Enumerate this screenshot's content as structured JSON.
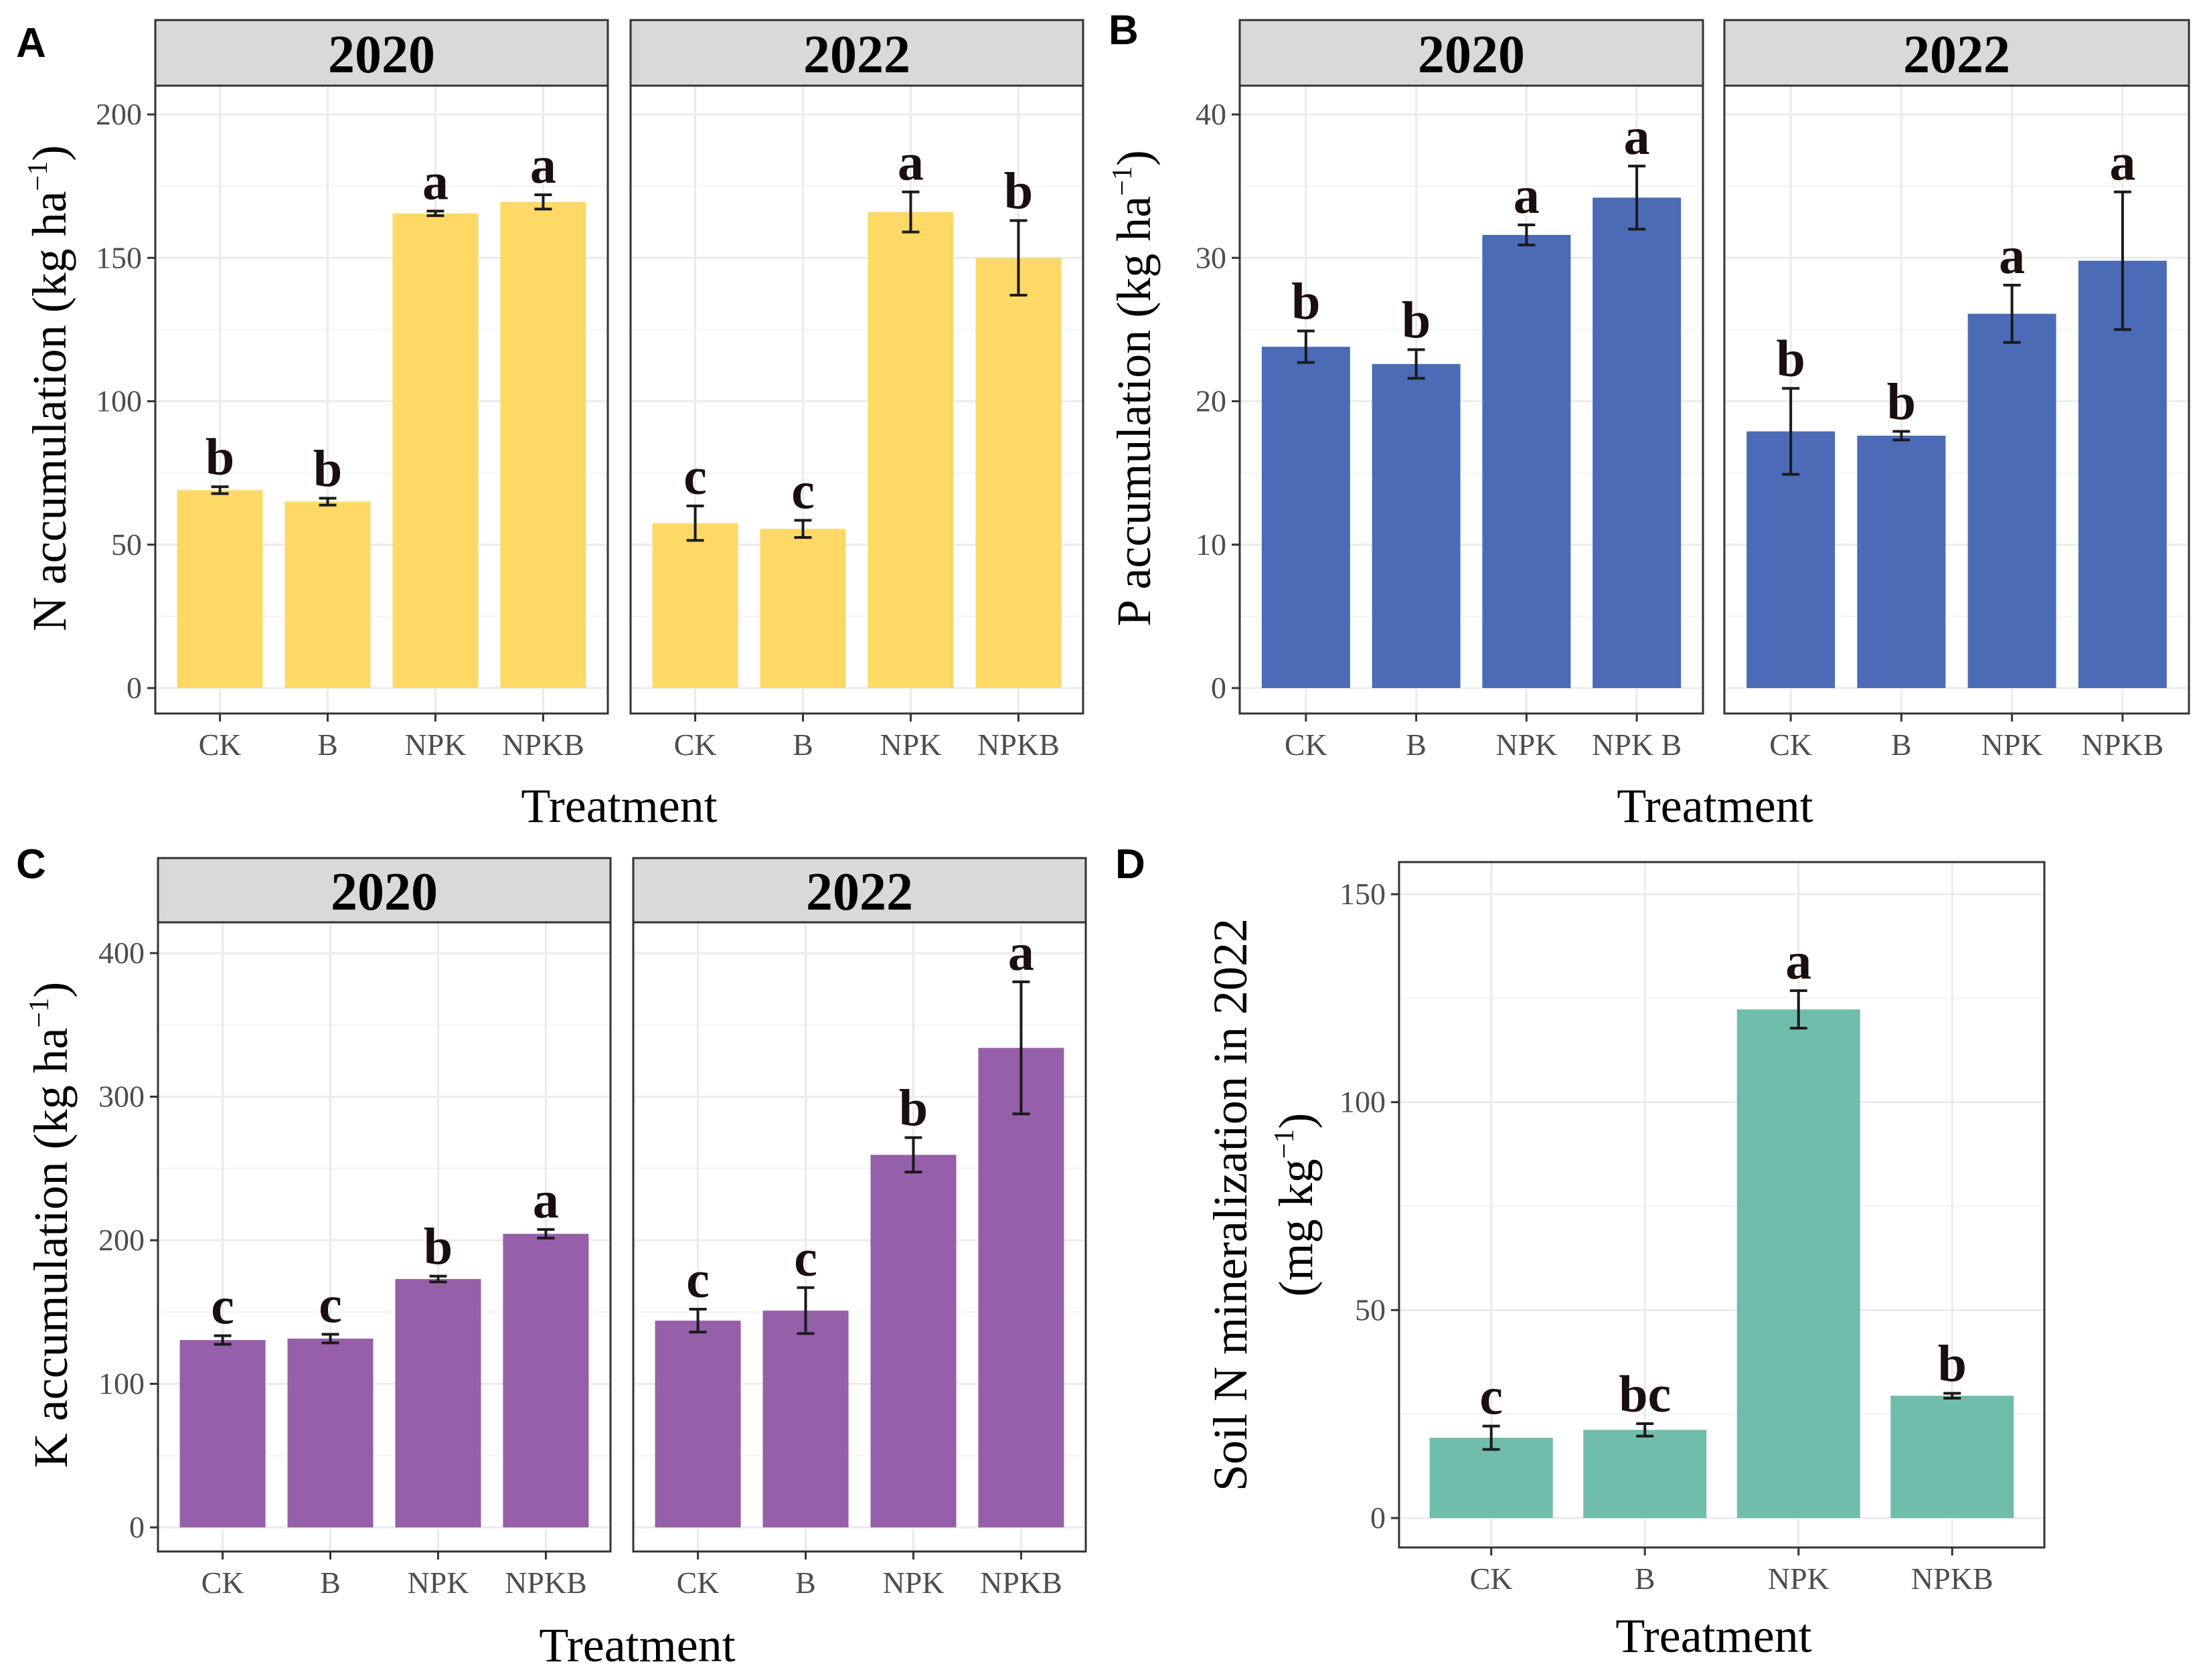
{
  "panels": [
    {
      "label": "A",
      "ylabel": "N accumulation (kg ha",
      "ylabel_sup": "−1",
      "ylabel_tail": ")",
      "xlabel": "Treatment",
      "color": "#FFD966",
      "ylim": [
        0,
        200
      ],
      "yticks": [
        0,
        50,
        100,
        150,
        200
      ],
      "facets": [
        {
          "strip": "2020",
          "categories": [
            "CK",
            "B",
            "NPK",
            "NPKB"
          ],
          "values": [
            69,
            65,
            165.5,
            169.5
          ],
          "errors": [
            1.2,
            1.2,
            0.8,
            2.5
          ],
          "letters": [
            "b",
            "b",
            "a",
            "a"
          ]
        },
        {
          "strip": "2022",
          "categories": [
            "CK",
            "B",
            "NPK",
            "NPKB"
          ],
          "values": [
            57.5,
            55.5,
            166,
            150
          ],
          "errors": [
            6,
            3,
            7,
            13
          ],
          "letters": [
            "c",
            "c",
            "a",
            "b"
          ]
        }
      ]
    },
    {
      "label": "B",
      "ylabel": "P accumulation (kg ha",
      "ylabel_sup": "−1",
      "ylabel_tail": ")",
      "xlabel": "Treatment",
      "color": "#4B6BB7",
      "ylim": [
        0,
        40
      ],
      "yticks": [
        0,
        10,
        20,
        30,
        40
      ],
      "facets": [
        {
          "strip": "2020",
          "categories": [
            "CK",
            "B",
            "NPK",
            "NPK B"
          ],
          "values": [
            23.8,
            22.6,
            31.6,
            34.2
          ],
          "errors": [
            1.1,
            1.0,
            0.7,
            2.2
          ],
          "letters": [
            "b",
            "b",
            "a",
            "a"
          ]
        },
        {
          "strip": "2022",
          "categories": [
            "CK",
            "B",
            "NPK",
            "NPKB"
          ],
          "values": [
            17.9,
            17.6,
            26.1,
            29.8
          ],
          "errors": [
            3.0,
            0.3,
            2.0,
            4.8
          ],
          "letters": [
            "b",
            "b",
            "a",
            "a"
          ]
        }
      ]
    },
    {
      "label": "C",
      "ylabel": "K accumulation (kg ha",
      "ylabel_sup": "−1",
      "ylabel_tail": ")",
      "xlabel": "Treatment",
      "color": "#955FA9",
      "ylim": [
        0,
        400
      ],
      "yticks": [
        0,
        100,
        200,
        300,
        400
      ],
      "facets": [
        {
          "strip": "2020",
          "categories": [
            "CK",
            "B",
            "NPK",
            "NPKB"
          ],
          "values": [
            130.5,
            131.5,
            173,
            204.5
          ],
          "errors": [
            3,
            3,
            2,
            3
          ],
          "letters": [
            "c",
            "c",
            "b",
            "a"
          ]
        },
        {
          "strip": "2022",
          "categories": [
            "CK",
            "B",
            "NPK",
            "NPKB"
          ],
          "values": [
            144,
            151,
            259.5,
            334
          ],
          "errors": [
            8,
            16,
            12,
            46
          ],
          "letters": [
            "c",
            "c",
            "b",
            "a"
          ]
        }
      ]
    },
    {
      "label": "D",
      "ylabel": "Soil N mineralization in 2022",
      "ylabel2": "(mg kg",
      "ylabel2_sup": "−1",
      "ylabel2_tail": ")",
      "xlabel": "Treatment",
      "color": "#70BDAB",
      "ylim": [
        0,
        150
      ],
      "yticks": [
        0,
        50,
        100,
        150
      ],
      "facets": [
        {
          "strip": "",
          "categories": [
            "CK",
            "B",
            "NPK",
            "NPKB"
          ],
          "values": [
            19.3,
            21.2,
            122.3,
            29.4
          ],
          "errors": [
            2.8,
            1.5,
            4.5,
            0.6
          ],
          "letters": [
            "c",
            "bc",
            "a",
            "b"
          ]
        }
      ]
    }
  ],
  "chart_data": [
    {
      "type": "bar",
      "title": "A",
      "xlabel": "Treatment",
      "ylabel": "N accumulation (kg ha−1)",
      "ylim": [
        0,
        200
      ],
      "categories": [
        "CK",
        "B",
        "NPK",
        "NPKB"
      ],
      "series": [
        {
          "name": "2020",
          "values": [
            69,
            65,
            165.5,
            169.5
          ],
          "errors": [
            1.2,
            1.2,
            0.8,
            2.5
          ],
          "letters": [
            "b",
            "b",
            "a",
            "a"
          ]
        },
        {
          "name": "2022",
          "values": [
            57.5,
            55.5,
            166,
            150
          ],
          "errors": [
            6,
            3,
            7,
            13
          ],
          "letters": [
            "c",
            "c",
            "a",
            "b"
          ]
        }
      ]
    },
    {
      "type": "bar",
      "title": "B",
      "xlabel": "Treatment",
      "ylabel": "P accumulation (kg ha−1)",
      "ylim": [
        0,
        40
      ],
      "categories": [
        "CK",
        "B",
        "NPK",
        "NPKB"
      ],
      "series": [
        {
          "name": "2020",
          "values": [
            23.8,
            22.6,
            31.6,
            34.2
          ],
          "errors": [
            1.1,
            1.0,
            0.7,
            2.2
          ],
          "letters": [
            "b",
            "b",
            "a",
            "a"
          ]
        },
        {
          "name": "2022",
          "values": [
            17.9,
            17.6,
            26.1,
            29.8
          ],
          "errors": [
            3.0,
            0.3,
            2.0,
            4.8
          ],
          "letters": [
            "b",
            "b",
            "a",
            "a"
          ]
        }
      ]
    },
    {
      "type": "bar",
      "title": "C",
      "xlabel": "Treatment",
      "ylabel": "K accumulation (kg ha−1)",
      "ylim": [
        0,
        400
      ],
      "categories": [
        "CK",
        "B",
        "NPK",
        "NPKB"
      ],
      "series": [
        {
          "name": "2020",
          "values": [
            130.5,
            131.5,
            173,
            204.5
          ],
          "errors": [
            3,
            3,
            2,
            3
          ],
          "letters": [
            "c",
            "c",
            "b",
            "a"
          ]
        },
        {
          "name": "2022",
          "values": [
            144,
            151,
            259.5,
            334
          ],
          "errors": [
            8,
            16,
            12,
            46
          ],
          "letters": [
            "c",
            "c",
            "b",
            "a"
          ]
        }
      ]
    },
    {
      "type": "bar",
      "title": "D",
      "xlabel": "Treatment",
      "ylabel": "Soil N mineralization in 2022 (mg kg−1)",
      "ylim": [
        0,
        150
      ],
      "categories": [
        "CK",
        "B",
        "NPK",
        "NPKB"
      ],
      "series": [
        {
          "name": "2022",
          "values": [
            19.3,
            21.2,
            122.3,
            29.4
          ],
          "errors": [
            2.8,
            1.5,
            4.5,
            0.6
          ],
          "letters": [
            "c",
            "bc",
            "a",
            "b"
          ]
        }
      ]
    }
  ]
}
